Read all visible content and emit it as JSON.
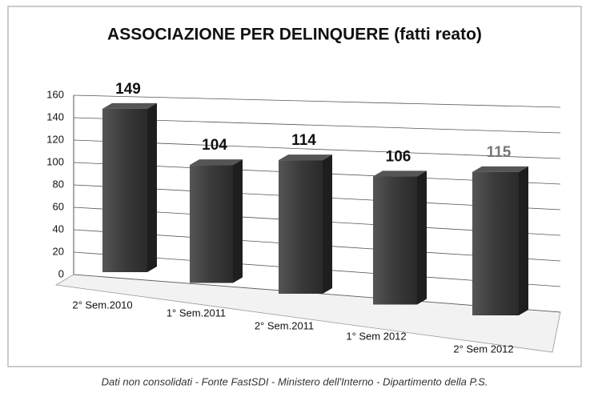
{
  "chart_data": {
    "type": "bar3d",
    "title": "ASSOCIAZIONE PER DELINQUERE (fatti reato)",
    "categories": [
      "2° Sem.2010",
      "1° Sem.2011",
      "2° Sem.2011",
      "1° Sem 2012",
      "2° Sem 2012"
    ],
    "values": [
      149,
      104,
      114,
      106,
      115
    ],
    "color": "#3a3a3a",
    "ylim": [
      0,
      160
    ],
    "yticks": [
      0,
      20,
      40,
      60,
      80,
      100,
      120,
      140,
      160
    ],
    "grid": true,
    "footnote": "Dati non consolidati - Fonte FastSDI - Ministero dell'Interno - Dipartimento della P.S."
  }
}
